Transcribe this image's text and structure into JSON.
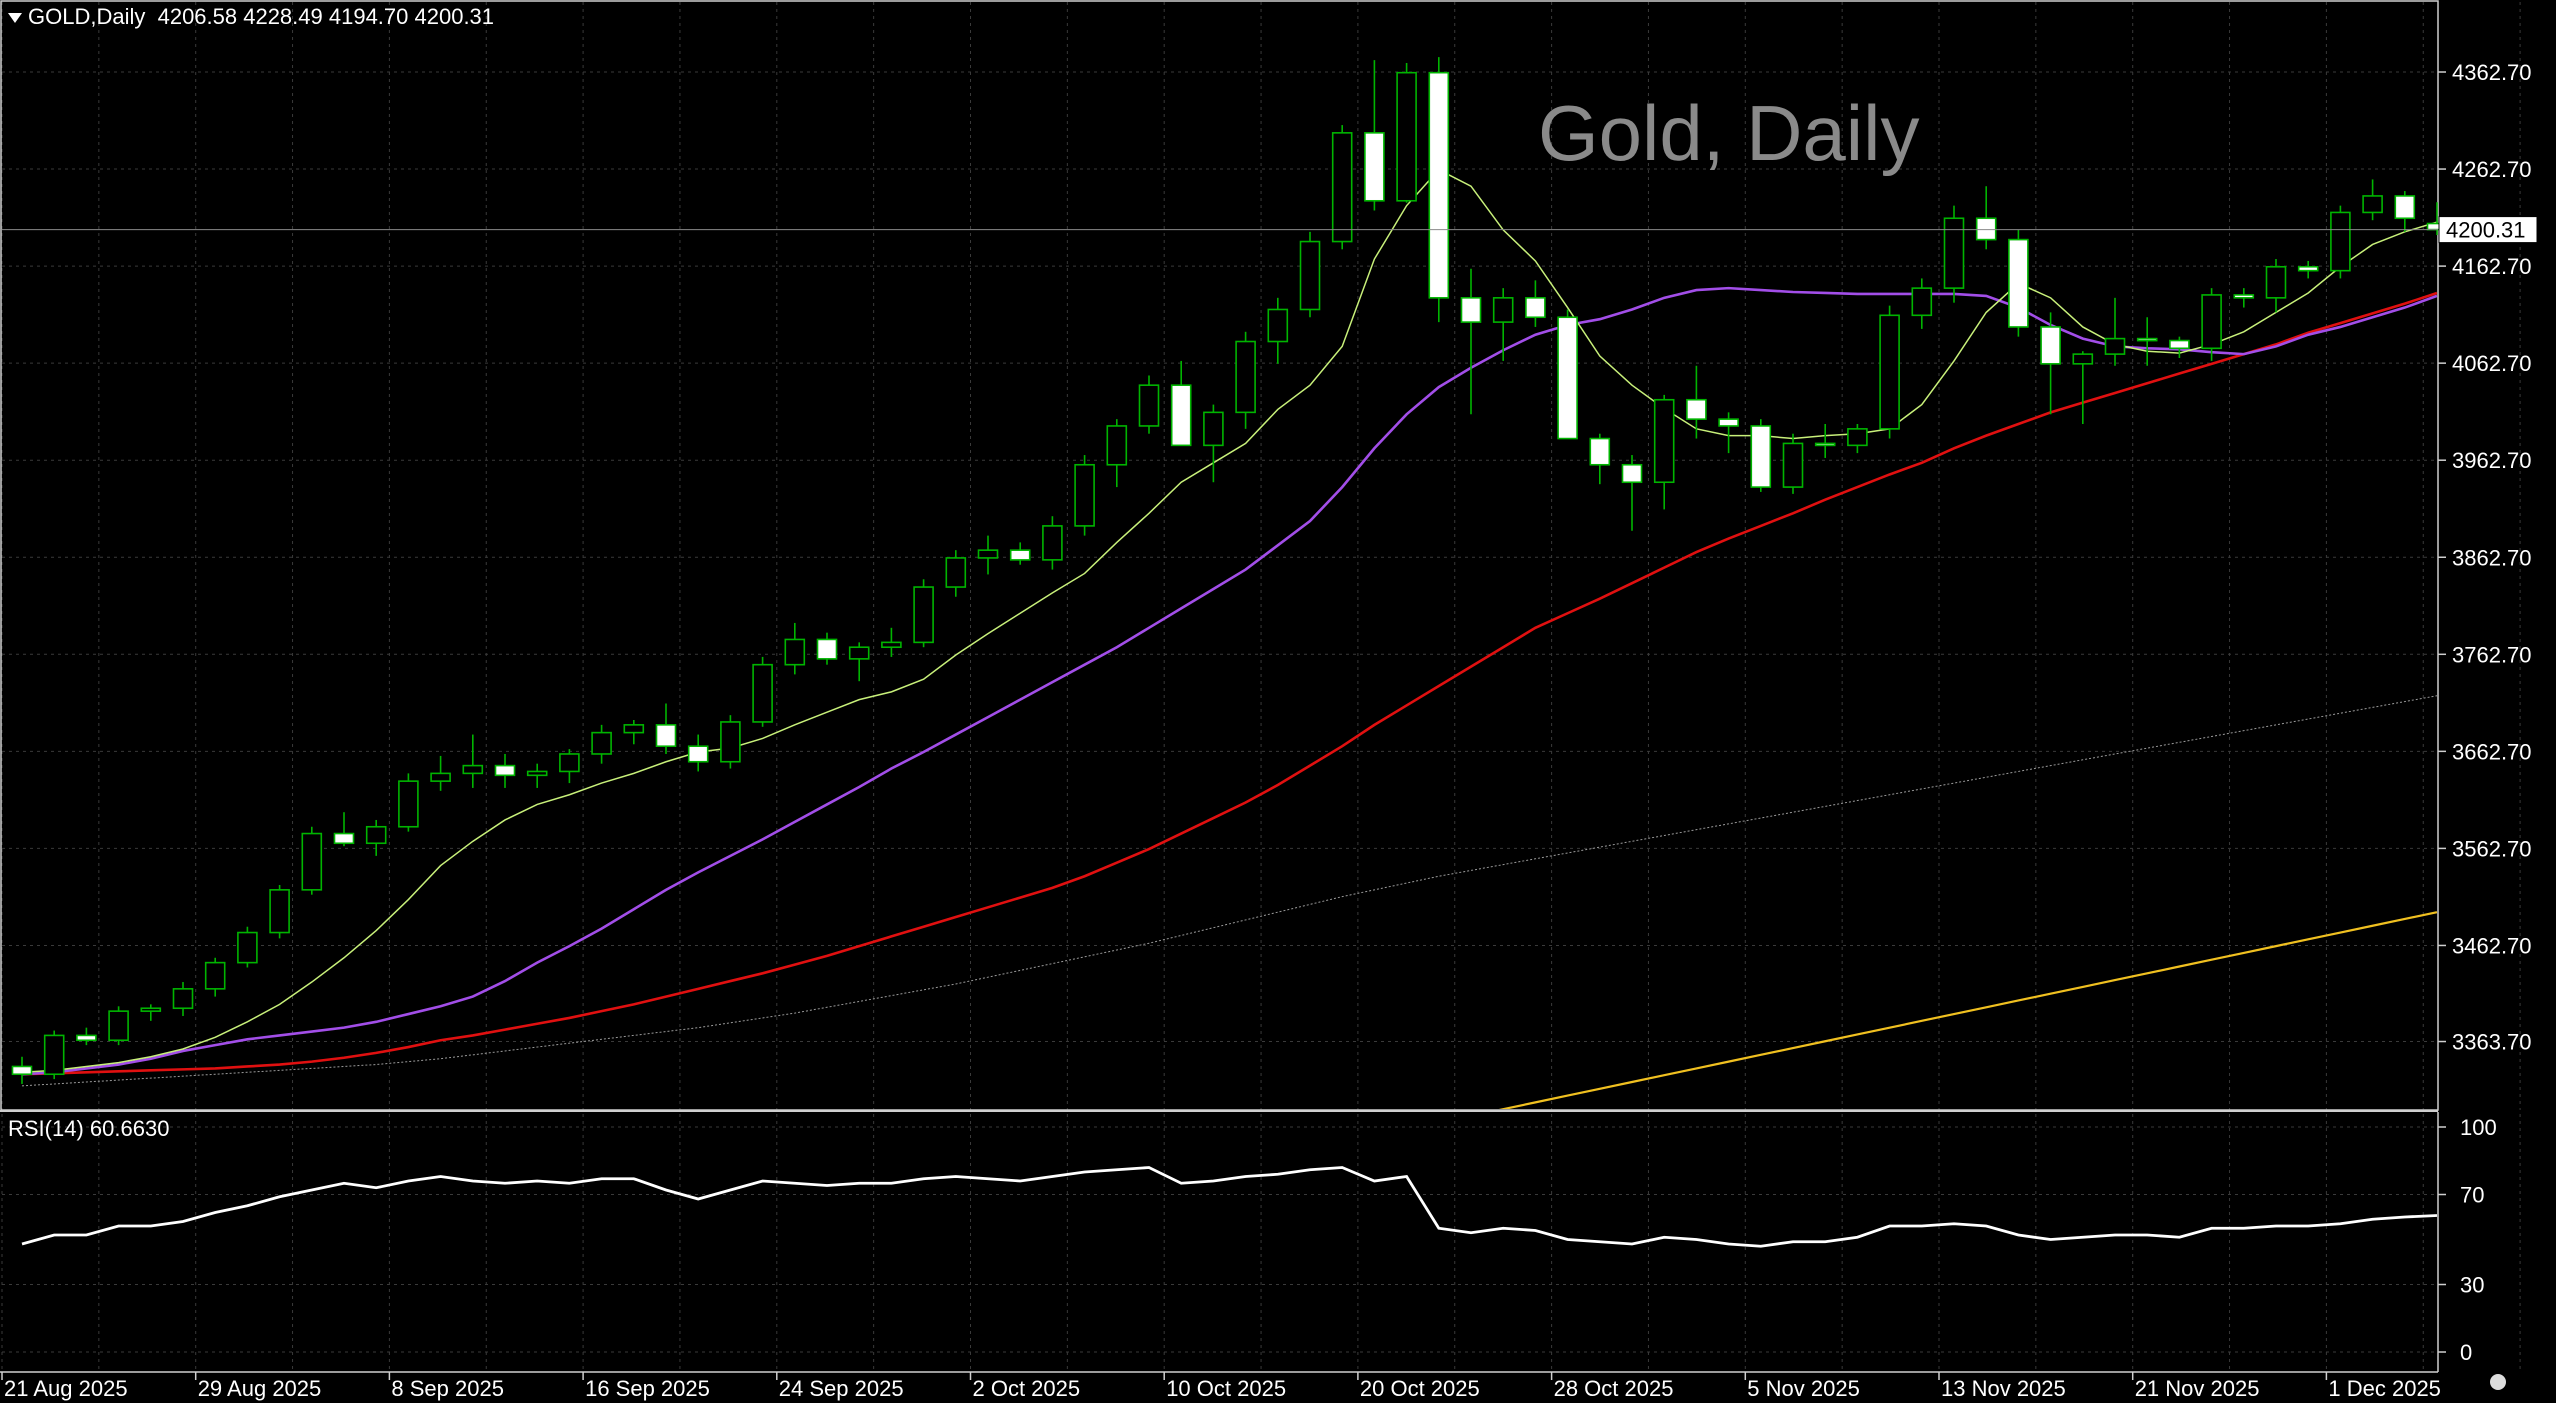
{
  "header": {
    "symbol": "GOLD,Daily",
    "ohlc": "4206.58 4228.49 4194.70 4200.31",
    "watermark": "Gold, Daily"
  },
  "rsi_header": "RSI(14) 60.6630",
  "current_price_label": "4200.31",
  "colors": {
    "background": "#000000",
    "grid": "#3a3a3a",
    "bull_candle": "#000000",
    "bear_candle": "#ffffff",
    "wick": "#00b400",
    "ma_fast": "#c8f07a",
    "ma_medium": "#a24ee8",
    "ma_slow": "#e01010",
    "ma_100": "#9a9a9a",
    "ma_200": "#f0c020",
    "rsi_line": "#ffffff"
  },
  "chart_data": [
    {
      "type": "candlestick",
      "title": "Gold, Daily",
      "ylim": [
        3263.7,
        4412.7
      ],
      "y_ticks": [
        "4362.70",
        "4262.70",
        "4162.70",
        "4062.70",
        "3962.70",
        "3862.70",
        "3762.70",
        "3662.70",
        "3562.70",
        "3462.70",
        "3363.70"
      ],
      "x_tick_labels": [
        "21 Aug 2025",
        "29 Aug 2025",
        "8 Sep 2025",
        "16 Sep 2025",
        "24 Sep 2025",
        "2 Oct 2025",
        "10 Oct 2025",
        "20 Oct 2025",
        "28 Oct 2025",
        "5 Nov 2025",
        "13 Nov 2025",
        "21 Nov 2025",
        "1 Dec 2025"
      ],
      "grid": true,
      "candles": [
        [
          3338,
          3348,
          3320,
          3330
        ],
        [
          3330,
          3375,
          3325,
          3370
        ],
        [
          3370,
          3378,
          3360,
          3365
        ],
        [
          3365,
          3400,
          3360,
          3395
        ],
        [
          3395,
          3402,
          3385,
          3398
        ],
        [
          3398,
          3425,
          3390,
          3418
        ],
        [
          3418,
          3450,
          3410,
          3445
        ],
        [
          3445,
          3482,
          3440,
          3476
        ],
        [
          3476,
          3525,
          3470,
          3520
        ],
        [
          3520,
          3585,
          3515,
          3578
        ],
        [
          3578,
          3600,
          3565,
          3568
        ],
        [
          3568,
          3592,
          3555,
          3585
        ],
        [
          3585,
          3640,
          3580,
          3632
        ],
        [
          3632,
          3658,
          3622,
          3640
        ],
        [
          3640,
          3680,
          3625,
          3648
        ],
        [
          3648,
          3660,
          3625,
          3638
        ],
        [
          3638,
          3650,
          3625,
          3642
        ],
        [
          3642,
          3665,
          3630,
          3660
        ],
        [
          3660,
          3690,
          3650,
          3682
        ],
        [
          3682,
          3695,
          3670,
          3690
        ],
        [
          3690,
          3712,
          3660,
          3668
        ],
        [
          3668,
          3680,
          3642,
          3652
        ],
        [
          3652,
          3700,
          3645,
          3693
        ],
        [
          3693,
          3760,
          3688,
          3752
        ],
        [
          3752,
          3795,
          3742,
          3778
        ],
        [
          3778,
          3785,
          3752,
          3758
        ],
        [
          3758,
          3775,
          3735,
          3770
        ],
        [
          3770,
          3790,
          3760,
          3775
        ],
        [
          3775,
          3840,
          3770,
          3832
        ],
        [
          3832,
          3870,
          3822,
          3862
        ],
        [
          3862,
          3885,
          3845,
          3870
        ],
        [
          3870,
          3878,
          3855,
          3860
        ],
        [
          3860,
          3905,
          3850,
          3895
        ],
        [
          3895,
          3968,
          3885,
          3958
        ],
        [
          3958,
          4005,
          3935,
          3998
        ],
        [
          3998,
          4050,
          3990,
          4040
        ],
        [
          4040,
          4065,
          3985,
          3978
        ],
        [
          3978,
          4020,
          3940,
          4012
        ],
        [
          4012,
          4095,
          3995,
          4085
        ],
        [
          4085,
          4130,
          4062,
          4118
        ],
        [
          4118,
          4198,
          4110,
          4188
        ],
        [
          4188,
          4308,
          4180,
          4300
        ],
        [
          4300,
          4375,
          4220,
          4230
        ],
        [
          4230,
          4372,
          4228,
          4362
        ],
        [
          4362,
          4378,
          4105,
          4130
        ],
        [
          4130,
          4160,
          4010,
          4105
        ],
        [
          4105,
          4140,
          4065,
          4130
        ],
        [
          4130,
          4148,
          4100,
          4110
        ],
        [
          4110,
          4118,
          3988,
          3985
        ],
        [
          3985,
          3990,
          3938,
          3958
        ],
        [
          3958,
          3968,
          3890,
          3940
        ],
        [
          3940,
          4030,
          3912,
          4025
        ],
        [
          4025,
          4060,
          3985,
          4005
        ],
        [
          4005,
          4012,
          3970,
          3998
        ],
        [
          3998,
          4005,
          3930,
          3935
        ],
        [
          3935,
          3990,
          3928,
          3980
        ],
        [
          3980,
          4000,
          3965,
          3978
        ],
        [
          3978,
          4000,
          3970,
          3995
        ],
        [
          3995,
          4122,
          3985,
          4112
        ],
        [
          4112,
          4150,
          4098,
          4140
        ],
        [
          4140,
          4225,
          4125,
          4212
        ],
        [
          4212,
          4245,
          4180,
          4190
        ],
        [
          4190,
          4200,
          4090,
          4100
        ],
        [
          4100,
          4115,
          4010,
          4062
        ],
        [
          4062,
          4075,
          4000,
          4072
        ],
        [
          4072,
          4130,
          4060,
          4088
        ],
        [
          4088,
          4110,
          4060,
          4086
        ],
        [
          4086,
          4090,
          4068,
          4078
        ],
        [
          4078,
          4140,
          4065,
          4133
        ],
        [
          4133,
          4140,
          4120,
          4130
        ],
        [
          4130,
          4170,
          4115,
          4162
        ],
        [
          4162,
          4168,
          4150,
          4158
        ],
        [
          4158,
          4225,
          4150,
          4218
        ],
        [
          4218,
          4252,
          4210,
          4235
        ],
        [
          4235,
          4240,
          4198,
          4212
        ],
        [
          4206.58,
          4228.49,
          4194.7,
          4200.31
        ]
      ],
      "ma_fast": [
        3332,
        3334,
        3338,
        3342,
        3348,
        3356,
        3368,
        3384,
        3402,
        3425,
        3450,
        3478,
        3510,
        3545,
        3570,
        3592,
        3608,
        3618,
        3630,
        3640,
        3652,
        3662,
        3666,
        3676,
        3690,
        3703,
        3716,
        3724,
        3737,
        3762,
        3784,
        3805,
        3826,
        3846,
        3878,
        3908,
        3940,
        3960,
        3980,
        4015,
        4040,
        4080,
        4170,
        4225,
        4262,
        4245,
        4200,
        4168,
        4120,
        4070,
        4040,
        4016,
        3995,
        3988,
        3988,
        3985,
        3988,
        3990,
        3995,
        4020,
        4065,
        4115,
        4145,
        4130,
        4100,
        4082,
        4075,
        4073,
        4082,
        4095,
        4115,
        4135,
        4162,
        4185,
        4198,
        4208
      ],
      "ma_medium": [
        3330,
        3332,
        3336,
        3340,
        3346,
        3354,
        3360,
        3366,
        3370,
        3374,
        3378,
        3384,
        3392,
        3400,
        3410,
        3426,
        3445,
        3462,
        3480,
        3500,
        3520,
        3538,
        3555,
        3572,
        3590,
        3608,
        3626,
        3645,
        3662,
        3680,
        3698,
        3716,
        3734,
        3752,
        3770,
        3790,
        3810,
        3830,
        3850,
        3875,
        3900,
        3935,
        3975,
        4010,
        4038,
        4058,
        4076,
        4092,
        4102,
        4108,
        4118,
        4130,
        4138,
        4140,
        4138,
        4136,
        4135,
        4134,
        4134,
        4134,
        4134,
        4132,
        4120,
        4102,
        4088,
        4080,
        4078,
        4077,
        4074,
        4072,
        4080,
        4092,
        4100,
        4110,
        4120,
        4132
      ],
      "ma_slow": [
        3330,
        3331,
        3332,
        3333,
        3334,
        3335,
        3336,
        3338,
        3340,
        3343,
        3347,
        3352,
        3358,
        3365,
        3370,
        3376,
        3382,
        3388,
        3395,
        3402,
        3410,
        3418,
        3426,
        3434,
        3443,
        3452,
        3462,
        3472,
        3482,
        3492,
        3502,
        3512,
        3522,
        3534,
        3548,
        3562,
        3578,
        3594,
        3610,
        3628,
        3648,
        3668,
        3690,
        3710,
        3730,
        3750,
        3770,
        3790,
        3805,
        3820,
        3836,
        3852,
        3868,
        3882,
        3895,
        3908,
        3922,
        3935,
        3948,
        3960,
        3975,
        3988,
        4000,
        4012,
        4022,
        4032,
        4042,
        4052,
        4062,
        4072,
        4082,
        4094,
        4104,
        4114,
        4124,
        4135
      ],
      "ma_100": [
        3318,
        3320,
        3322,
        3324,
        3326,
        3328,
        3330,
        3332,
        3334,
        3336,
        3338,
        3340,
        3343,
        3346,
        3350,
        3354,
        3358,
        3362,
        3366,
        3370,
        3374,
        3378,
        3383,
        3388,
        3393,
        3399,
        3405,
        3411,
        3417,
        3423,
        3430,
        3437,
        3444,
        3451,
        3458,
        3465,
        3473,
        3481,
        3489,
        3497,
        3505,
        3513,
        3520,
        3527,
        3534,
        3540,
        3546,
        3552,
        3558,
        3564,
        3570,
        3576,
        3582,
        3588,
        3594,
        3600,
        3606,
        3612,
        3618,
        3624,
        3630,
        3636,
        3642,
        3648,
        3654,
        3660,
        3666,
        3672,
        3678,
        3684,
        3690,
        3696,
        3702,
        3708,
        3714,
        3720
      ],
      "ma_200": [
        3180,
        3182,
        3184,
        3186,
        3188,
        3190,
        3192,
        3194,
        3196,
        3198,
        3200,
        3202,
        3204,
        3206,
        3208,
        3210,
        3212,
        3214,
        3216,
        3218,
        3220,
        3222,
        3224,
        3226,
        3228,
        3230,
        3232,
        3234,
        3236,
        3238,
        3240,
        3242,
        3244,
        3246,
        3248,
        3250,
        3252,
        3254,
        3256,
        3258,
        3260,
        3262,
        3265,
        3272,
        3280,
        3287,
        3294,
        3301,
        3308,
        3315,
        3322,
        3329,
        3336,
        3343,
        3350,
        3357,
        3364,
        3371,
        3378,
        3385,
        3392,
        3399,
        3406,
        3413,
        3420,
        3427,
        3434,
        3441,
        3448,
        3455,
        3462,
        3469,
        3476,
        3483,
        3490,
        3497
      ],
      "current_price": 4200.31
    },
    {
      "type": "line",
      "title": "RSI(14) 60.6630",
      "ylim": [
        0,
        100
      ],
      "y_ticks": [
        "100",
        "70",
        "30",
        "0"
      ],
      "values": [
        48,
        52,
        52,
        56,
        56,
        58,
        62,
        65,
        69,
        72,
        75,
        73,
        76,
        78,
        76,
        75,
        76,
        75,
        77,
        77,
        72,
        68,
        72,
        76,
        75,
        74,
        75,
        75,
        77,
        78,
        77,
        76,
        78,
        80,
        81,
        82,
        75,
        76,
        78,
        79,
        81,
        82,
        76,
        78,
        55,
        53,
        55,
        54,
        50,
        49,
        48,
        51,
        50,
        48,
        47,
        49,
        49,
        51,
        56,
        56,
        57,
        56,
        52,
        50,
        51,
        52,
        52,
        51,
        55,
        55,
        56,
        56,
        57,
        59,
        60,
        60.663
      ]
    }
  ]
}
